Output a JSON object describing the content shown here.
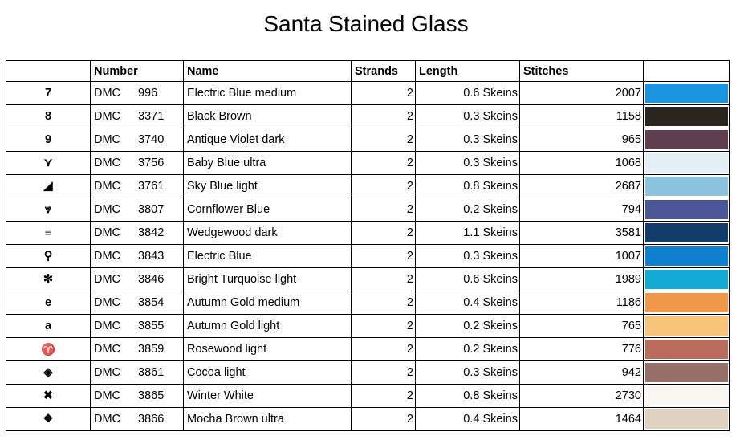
{
  "header": {
    "title": "Santa Stained Glass"
  },
  "table": {
    "columns": {
      "number": "Number",
      "name": "Name",
      "strands": "Strands",
      "length": "Length",
      "stitches": "Stitches"
    },
    "rows": [
      {
        "symbol": "7",
        "brand": "DMC",
        "number": 996,
        "name": "Electric Blue medium",
        "strands": 2,
        "length": "0.6 Skeins",
        "stitches": 2007,
        "color": "#1a93e0"
      },
      {
        "symbol": "8",
        "brand": "DMC",
        "number": 3371,
        "name": "Black Brown",
        "strands": 2,
        "length": "0.3 Skeins",
        "stitches": 1158,
        "color": "#2b2520"
      },
      {
        "symbol": "9",
        "brand": "DMC",
        "number": 3740,
        "name": "Antique Violet dark",
        "strands": 2,
        "length": "0.3 Skeins",
        "stitches": 965,
        "color": "#5e3f4f"
      },
      {
        "symbol": "⋎",
        "brand": "DMC",
        "number": 3756,
        "name": "Baby Blue ultra",
        "strands": 2,
        "length": "0.3 Skeins",
        "stitches": 1068,
        "color": "#e4eff5"
      },
      {
        "symbol": "◢",
        "brand": "DMC",
        "number": 3761,
        "name": "Sky Blue light",
        "strands": 2,
        "length": "0.8 Skeins",
        "stitches": 2687,
        "color": "#8cc3dc"
      },
      {
        "symbol": "⩔",
        "brand": "DMC",
        "number": 3807,
        "name": "Cornflower Blue",
        "strands": 2,
        "length": "0.2 Skeins",
        "stitches": 794,
        "color": "#4a5695"
      },
      {
        "symbol": "≡",
        "brand": "DMC",
        "number": 3842,
        "name": "Wedgewood dark",
        "strands": 2,
        "length": "1.1 Skeins",
        "stitches": 3581,
        "color": "#133d68"
      },
      {
        "symbol": "⚲",
        "brand": "DMC",
        "number": 3843,
        "name": "Electric Blue",
        "strands": 2,
        "length": "0.3 Skeins",
        "stitches": 1007,
        "color": "#0f80cf"
      },
      {
        "symbol": "✻",
        "brand": "DMC",
        "number": 3846,
        "name": "Bright Turquoise light",
        "strands": 2,
        "length": "0.6 Skeins",
        "stitches": 1989,
        "color": "#10aad2"
      },
      {
        "symbol": "e",
        "brand": "DMC",
        "number": 3854,
        "name": "Autumn Gold medium",
        "strands": 2,
        "length": "0.4 Skeins",
        "stitches": 1186,
        "color": "#f0984a"
      },
      {
        "symbol": "a",
        "brand": "DMC",
        "number": 3855,
        "name": "Autumn Gold light",
        "strands": 2,
        "length": "0.2 Skeins",
        "stitches": 765,
        "color": "#f8c478"
      },
      {
        "symbol": "♈",
        "brand": "DMC",
        "number": 3859,
        "name": "Rosewood light",
        "strands": 2,
        "length": "0.2 Skeins",
        "stitches": 776,
        "color": "#b96b5c"
      },
      {
        "symbol": "◈",
        "brand": "DMC",
        "number": 3861,
        "name": "Cocoa light",
        "strands": 2,
        "length": "0.3 Skeins",
        "stitches": 942,
        "color": "#967068"
      },
      {
        "symbol": "✖",
        "brand": "DMC",
        "number": 3865,
        "name": "Winter White",
        "strands": 2,
        "length": "0.8 Skeins",
        "stitches": 2730,
        "color": "#f8f6f0"
      },
      {
        "symbol": "❖",
        "brand": "DMC",
        "number": 3866,
        "name": "Mocha Brown ultra",
        "strands": 2,
        "length": "0.4 Skeins",
        "stitches": 1464,
        "color": "#e0d2c0"
      }
    ]
  }
}
